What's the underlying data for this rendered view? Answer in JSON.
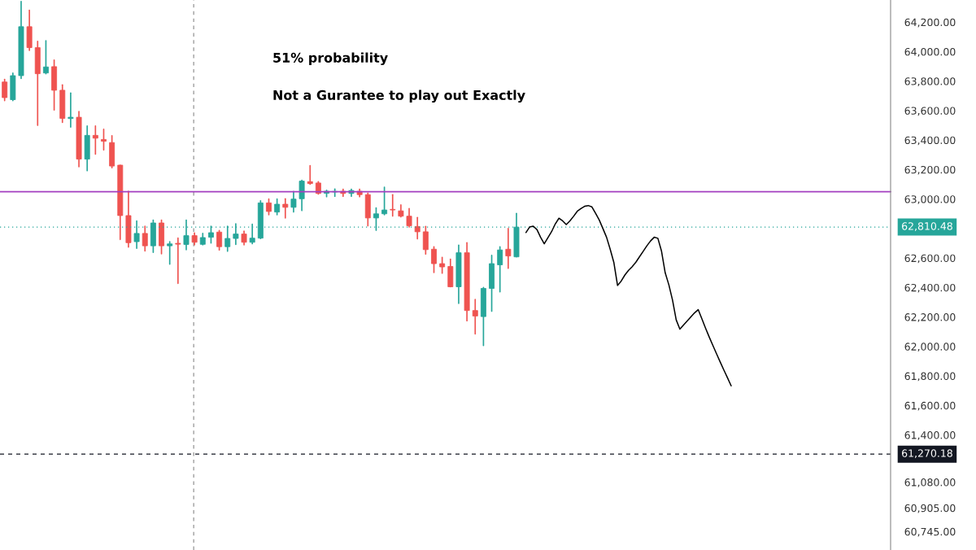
{
  "chart_data": [
    {
      "type": "candlestick",
      "categories": [
        null,
        null,
        null,
        null,
        null,
        null,
        null,
        null,
        null,
        null,
        null,
        null,
        null,
        null,
        null,
        null,
        null,
        null,
        null,
        null,
        null,
        null,
        null,
        null,
        null,
        null,
        null,
        null,
        null,
        null,
        null,
        null,
        null,
        null,
        null,
        null,
        null,
        null,
        null,
        null,
        null,
        null,
        null,
        null,
        null,
        null,
        null,
        null,
        null,
        null,
        null,
        null,
        null,
        null,
        null,
        null,
        null,
        null,
        null,
        null,
        null,
        null,
        null
      ],
      "ohlc": [
        [
          63794,
          63812,
          63668,
          63688
        ],
        [
          63674,
          63855,
          63668,
          63837
        ],
        [
          63837,
          64340,
          63818,
          64169
        ],
        [
          64169,
          64281,
          64008,
          64027
        ],
        [
          64027,
          64070,
          63500,
          63850
        ],
        [
          63855,
          64074,
          63850,
          63896
        ],
        [
          63898,
          63943,
          63604,
          63738
        ],
        [
          63738,
          63775,
          63520,
          63547
        ],
        [
          63546,
          63719,
          63488,
          63555
        ],
        [
          63555,
          63594,
          63219,
          63271
        ],
        [
          63271,
          63495,
          63193,
          63432
        ],
        [
          63432,
          63495,
          63305,
          63413
        ],
        [
          63404,
          63473,
          63333,
          63392
        ],
        [
          63383,
          63430,
          63212,
          63224
        ],
        [
          63230,
          63230,
          62726,
          62888
        ],
        [
          62888,
          63053,
          62674,
          62704
        ],
        [
          62711,
          62851,
          62666,
          62767
        ],
        [
          62767,
          62816,
          62648,
          62683
        ],
        [
          62683,
          62857,
          62638,
          62838
        ],
        [
          62838,
          62857,
          62629,
          62683
        ],
        [
          62683,
          62711,
          62558,
          62696
        ],
        [
          62700,
          62735,
          62428,
          62694
        ],
        [
          62692,
          62857,
          62657,
          62752
        ],
        [
          62752,
          62770,
          62690,
          62707
        ],
        [
          62693,
          62767,
          62690,
          62739
        ],
        [
          62741,
          62816,
          62702,
          62772
        ],
        [
          62776,
          62786,
          62655,
          62677
        ],
        [
          62677,
          62816,
          62646,
          62733
        ],
        [
          62733,
          62832,
          62692,
          62763
        ],
        [
          62763,
          62782,
          62689,
          62707
        ],
        [
          62707,
          62829,
          62698,
          62735
        ],
        [
          62735,
          62988,
          62732,
          62974
        ],
        [
          62974,
          63000,
          62894,
          62916
        ],
        [
          62912,
          63000,
          62894,
          62965
        ],
        [
          62965,
          63002,
          62872,
          62944
        ],
        [
          62944,
          63052,
          62912,
          63000
        ],
        [
          63002,
          63127,
          62922,
          63122
        ],
        [
          63118,
          63226,
          63100,
          63105
        ],
        [
          63109,
          63118,
          63034,
          63038
        ],
        [
          63039,
          63060,
          63016,
          63053
        ],
        [
          63048,
          63068,
          63019,
          63052
        ],
        [
          63053,
          63067,
          63019,
          63038
        ],
        [
          63038,
          63067,
          63019,
          63058
        ],
        [
          63053,
          63067,
          63016,
          63030
        ],
        [
          63030,
          63040,
          62819,
          62872
        ],
        [
          62872,
          62940,
          62788,
          62900
        ],
        [
          62900,
          63081,
          62894,
          62926
        ],
        [
          62930,
          63030,
          62885,
          62926
        ],
        [
          62920,
          62960,
          62879,
          62884
        ],
        [
          62884,
          62935,
          62810,
          62819
        ],
        [
          62814,
          62875,
          62730,
          62778
        ],
        [
          62778,
          62814,
          62627,
          62657
        ],
        [
          62660,
          62676,
          62502,
          62562
        ],
        [
          62562,
          62604,
          62498,
          62540
        ],
        [
          62543,
          62592,
          62405,
          62405
        ],
        [
          62405,
          62688,
          62293,
          62636
        ],
        [
          62636,
          62704,
          62175,
          62244
        ],
        [
          62244,
          62319,
          62086,
          62207
        ],
        [
          62203,
          62400,
          62007,
          62394
        ],
        [
          62394,
          62618,
          62240,
          62562
        ],
        [
          62554,
          62676,
          62371,
          62655
        ],
        [
          62660,
          62801,
          62530,
          62614
        ],
        [
          62608,
          62903,
          62608,
          62810
        ]
      ],
      "colors": [
        "#ef5350",
        "#26a69a",
        "#26a69a",
        "#ef5350",
        "#ef5350",
        "#26a69a",
        "#ef5350",
        "#ef5350",
        "#26a69a",
        "#ef5350",
        "#26a69a",
        "#ef5350",
        "#ef5350",
        "#ef5350",
        "#ef5350",
        "#ef5350",
        "#26a69a",
        "#ef5350",
        "#26a69a",
        "#ef5350",
        "#26a69a",
        "#ef5350",
        "#26a69a",
        "#ef5350",
        "#26a69a",
        "#26a69a",
        "#ef5350",
        "#26a69a",
        "#26a69a",
        "#ef5350",
        "#26a69a",
        "#26a69a",
        "#ef5350",
        "#26a69a",
        "#ef5350",
        "#26a69a",
        "#26a69a",
        "#ef5350",
        "#ef5350",
        "#26a69a",
        "#26a69a",
        "#ef5350",
        "#26a69a",
        "#ef5350",
        "#ef5350",
        "#26a69a",
        "#26a69a",
        "#ef5350",
        "#ef5350",
        "#ef5350",
        "#ef5350",
        "#ef5350",
        "#ef5350",
        "#ef5350",
        "#ef5350",
        "#26a69a",
        "#ef5350",
        "#ef5350",
        "#26a69a",
        "#26a69a",
        "#26a69a",
        "#ef5350",
        "#26a69a"
      ],
      "ylim": [
        60620,
        64350
      ],
      "tick_labels": false,
      "grid": false,
      "annotations": [
        "51% probability",
        "Not a Gurantee to play out Exactly"
      ]
    },
    {
      "type": "line",
      "categories": [
        null,
        null,
        null,
        null,
        null,
        null,
        null,
        null,
        null,
        null,
        null,
        null,
        null,
        null,
        null,
        null,
        null,
        null,
        null,
        null,
        null,
        null,
        null,
        null,
        null,
        null,
        null,
        null,
        null,
        null,
        null,
        null,
        null,
        null,
        null,
        null,
        null,
        null,
        null,
        null,
        null,
        null,
        null,
        null,
        null,
        null,
        null,
        null,
        null,
        null,
        null,
        null,
        null,
        null,
        null,
        null,
        null,
        null,
        null,
        null,
        null,
        null,
        null,
        null,
        null,
        null,
        null,
        null,
        null,
        null,
        null,
        null,
        null,
        null,
        null,
        null,
        null,
        null,
        null,
        null,
        null,
        null,
        null,
        null,
        null,
        null,
        null,
        null,
        null,
        null,
        null,
        null,
        null,
        null,
        null,
        null,
        null,
        null,
        null,
        null,
        null,
        null,
        null,
        null,
        null,
        null,
        null,
        null,
        null,
        null,
        null,
        null,
        null,
        null,
        null,
        null,
        null,
        null,
        null,
        null,
        null,
        null,
        null,
        null,
        null,
        null,
        null,
        null,
        null,
        null,
        null,
        null,
        null,
        null,
        null,
        null,
        null,
        null,
        null,
        null,
        null,
        null,
        null,
        null,
        null,
        null,
        null,
        null,
        null,
        null,
        null,
        null,
        null,
        null,
        null,
        null,
        null,
        null,
        null,
        null,
        null,
        null,
        null,
        null,
        null,
        null,
        null,
        null,
        null,
        null,
        null,
        null,
        null,
        null,
        null,
        null,
        null,
        null,
        null,
        null,
        null,
        null,
        null,
        null,
        null,
        null,
        null,
        null,
        null,
        null,
        null,
        null,
        null,
        null,
        null,
        null,
        null,
        null,
        null,
        null,
        null,
        null,
        null,
        null,
        null,
        null,
        null,
        null,
        null,
        null,
        null,
        null,
        null,
        null,
        null,
        null,
        null,
        null,
        null,
        null,
        null,
        null,
        null,
        null,
        null,
        null,
        null,
        null,
        null,
        null,
        null,
        null,
        null,
        null,
        null,
        null,
        null,
        null,
        null,
        null,
        null,
        null,
        null
      ],
      "series": [
        {
          "color": "#000000",
          "values": [
            null,
            null,
            null,
            null,
            null,
            null,
            null,
            null,
            null,
            null,
            null,
            null,
            null,
            null,
            null,
            null,
            null,
            null,
            null,
            null,
            null,
            null,
            null,
            null,
            null,
            null,
            null,
            null,
            null,
            null,
            null,
            null,
            null,
            null,
            null,
            null,
            null,
            null,
            null,
            null,
            null,
            null,
            null,
            null,
            null,
            null,
            null,
            null,
            null,
            null,
            null,
            null,
            null,
            null,
            null,
            null,
            null,
            null,
            null,
            null,
            null,
            null,
            null,
            null,
            null,
            null,
            null,
            null,
            null,
            null,
            null,
            null,
            null,
            null,
            null,
            null,
            null,
            null,
            null,
            null,
            null,
            null,
            null,
            null,
            null,
            null,
            null,
            null,
            null,
            null,
            null,
            null,
            null,
            null,
            null,
            null,
            null,
            null,
            null,
            null,
            null,
            null,
            null,
            null,
            null,
            null,
            null,
            null,
            null,
            null,
            null,
            null,
            null,
            null,
            null,
            null,
            null,
            null,
            null,
            null,
            null,
            null,
            null,
            null,
            null,
            null,
            null,
            null,
            null,
            null,
            null,
            null,
            null,
            null,
            null,
            null,
            null,
            null,
            null,
            null,
            null,
            null,
            null,
            62773,
            62810,
            62816,
            62793,
            62741,
            62697,
            62738,
            62779,
            62831,
            62870,
            62852,
            62827,
            62852,
            62883,
            62917,
            62935,
            62951,
            62956,
            62947,
            62903,
            62858,
            62800,
            62741,
            62659,
            62569,
            62414,
            62444,
            62485,
            62517,
            62542,
            62572,
            62609,
            62646,
            62683,
            62716,
            62741,
            62734,
            62646,
            62500,
            62418,
            62315,
            62181,
            62118,
            62146,
            62173,
            62201,
            62228,
            62250,
            62188,
            62125,
            62065,
            62008,
            61951,
            61895,
            61841,
            61788,
            61733,
            null,
            null,
            null,
            null,
            null,
            null,
            null,
            null,
            null,
            null,
            null,
            null,
            null,
            null,
            null,
            null,
            null,
            null,
            null,
            null,
            null,
            null,
            null,
            null,
            null,
            null,
            null,
            null,
            null,
            null,
            null,
            null,
            null,
            null,
            null,
            null,
            null,
            null,
            null,
            null,
            null,
            null,
            null
          ]
        }
      ],
      "ylim": [
        60620,
        64350
      ],
      "yticks": [
        {
          "value": 64200,
          "label": "64,200.00"
        },
        {
          "value": 64000,
          "label": "64,000.00"
        },
        {
          "value": 63800,
          "label": "63,800.00"
        },
        {
          "value": 63600,
          "label": "63,600.00"
        },
        {
          "value": 63400,
          "label": "63,400.00"
        },
        {
          "value": 63200,
          "label": "63,200.00"
        },
        {
          "value": 63000,
          "label": "63,000.00"
        },
        {
          "value": 62600,
          "label": "62,600.00"
        },
        {
          "value": 62400,
          "label": "62,400.00"
        },
        {
          "value": 62200,
          "label": "62,200.00"
        },
        {
          "value": 62000,
          "label": "62,000.00"
        },
        {
          "value": 61800,
          "label": "61,800.00"
        },
        {
          "value": 61600,
          "label": "61,600.00"
        },
        {
          "value": 61400,
          "label": "61,400.00"
        },
        {
          "value": 61080,
          "label": "61,080.00"
        },
        {
          "value": 60905,
          "label": "60,905.00"
        },
        {
          "value": 60745,
          "label": "60,745.00"
        }
      ],
      "tick_labels": "y",
      "grid": false,
      "marker": "none",
      "line_style": "solid",
      "ref_lines": [
        {
          "axis": "y",
          "value": 63050,
          "color": "#a43fc0",
          "line_style": "solid"
        },
        {
          "axis": "y",
          "value": 62810.48,
          "label": "62,810.48",
          "color": "#26a69a",
          "line_style": "dotted"
        },
        {
          "axis": "y",
          "value": 61270.18,
          "label": "61,270.18",
          "color": "#131722",
          "line_style": "dashed"
        }
      ]
    }
  ]
}
